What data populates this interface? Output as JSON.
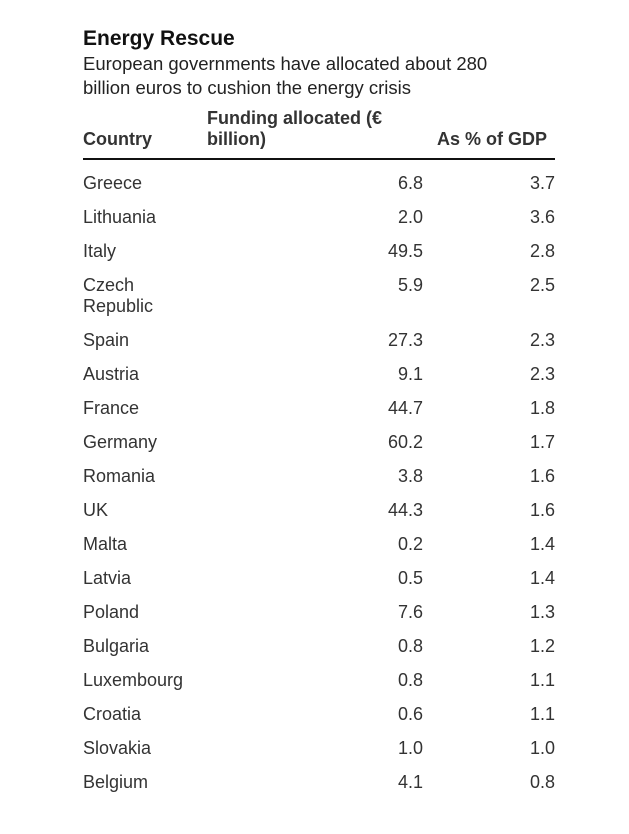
{
  "header": {
    "title": "Energy Rescue",
    "subtitle": "European governments have allocated about 280 billion euros to cushion the energy crisis"
  },
  "chart_data": {
    "type": "table",
    "title": "Energy Rescue",
    "subtitle": "European governments have allocated about 280 billion euros to cushion the energy crisis",
    "columns": [
      "Country",
      "Funding allocated (€ billion)",
      "As % of GDP"
    ],
    "rows": [
      [
        "Greece",
        "6.8",
        "3.7"
      ],
      [
        "Lithuania",
        "2.0",
        "3.6"
      ],
      [
        "Italy",
        "49.5",
        "2.8"
      ],
      [
        "Czech Republic",
        "5.9",
        "2.5"
      ],
      [
        "Spain",
        "27.3",
        "2.3"
      ],
      [
        "Austria",
        "9.1",
        "2.3"
      ],
      [
        "France",
        "44.7",
        "1.8"
      ],
      [
        "Germany",
        "60.2",
        "1.7"
      ],
      [
        "Romania",
        "3.8",
        "1.6"
      ],
      [
        "UK",
        "44.3",
        "1.6"
      ],
      [
        "Malta",
        "0.2",
        "1.4"
      ],
      [
        "Latvia",
        "0.5",
        "1.4"
      ],
      [
        "Poland",
        "7.6",
        "1.3"
      ],
      [
        "Bulgaria",
        "0.8",
        "1.2"
      ],
      [
        "Luxembourg",
        "0.8",
        "1.1"
      ],
      [
        "Croatia",
        "0.6",
        "1.1"
      ],
      [
        "Slovakia",
        "1.0",
        "1.0"
      ],
      [
        "Belgium",
        "4.1",
        "0.8"
      ]
    ]
  }
}
